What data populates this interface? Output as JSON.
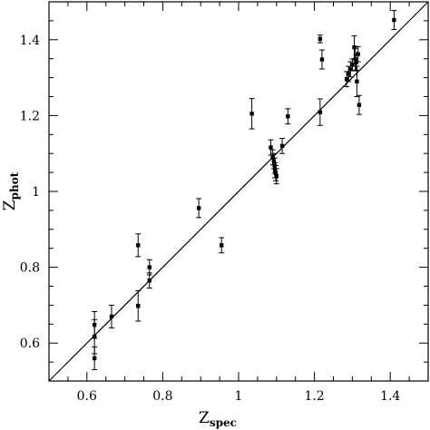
{
  "chart_data": {
    "type": "scatter",
    "xlabel": {
      "main": "Z",
      "sub": "spec"
    },
    "ylabel": {
      "main": "Z",
      "sub": "phot"
    },
    "xlim": [
      0.5,
      1.5
    ],
    "ylim": [
      0.5,
      1.5
    ],
    "x_ticks": [
      0.6,
      0.8,
      1,
      1.2,
      1.4
    ],
    "x_tick_labels": [
      "0.6",
      "0.8",
      "1",
      "1.2",
      "1.4"
    ],
    "y_ticks": [
      0.6,
      0.8,
      1,
      1.2,
      1.4
    ],
    "y_tick_labels": [
      "0.6",
      "0.8",
      "1",
      "1.2",
      "1.4"
    ],
    "reference_line": {
      "from": [
        0.5,
        0.5
      ],
      "to": [
        1.5,
        1.5
      ]
    },
    "grid": false,
    "points": [
      {
        "x": 0.62,
        "y": 0.648,
        "err": 0.035
      },
      {
        "x": 0.62,
        "y": 0.617,
        "err": 0.045
      },
      {
        "x": 0.62,
        "y": 0.56,
        "err": 0.03
      },
      {
        "x": 0.665,
        "y": 0.67,
        "err": 0.03
      },
      {
        "x": 0.735,
        "y": 0.858,
        "err": 0.03
      },
      {
        "x": 0.735,
        "y": 0.698,
        "err": 0.04
      },
      {
        "x": 0.765,
        "y": 0.8,
        "err": 0.02
      },
      {
        "x": 0.765,
        "y": 0.765,
        "err": 0.02
      },
      {
        "x": 0.895,
        "y": 0.956,
        "err": 0.025
      },
      {
        "x": 0.955,
        "y": 0.858,
        "err": 0.02
      },
      {
        "x": 1.035,
        "y": 1.205,
        "err": 0.04
      },
      {
        "x": 1.085,
        "y": 1.116,
        "err": 0.02
      },
      {
        "x": 1.09,
        "y": 1.09,
        "err": 0.02
      },
      {
        "x": 1.093,
        "y": 1.08,
        "err": 0.02
      },
      {
        "x": 1.095,
        "y": 1.068,
        "err": 0.02
      },
      {
        "x": 1.096,
        "y": 1.056,
        "err": 0.02
      },
      {
        "x": 1.098,
        "y": 1.048,
        "err": 0.02
      },
      {
        "x": 1.1,
        "y": 1.04,
        "err": 0.02
      },
      {
        "x": 1.115,
        "y": 1.12,
        "err": 0.02
      },
      {
        "x": 1.13,
        "y": 1.198,
        "err": 0.02
      },
      {
        "x": 1.215,
        "y": 1.209,
        "err": 0.035
      },
      {
        "x": 1.215,
        "y": 1.402,
        "err": 0.01
      },
      {
        "x": 1.22,
        "y": 1.348,
        "err": 0.025
      },
      {
        "x": 1.285,
        "y": 1.296,
        "err": 0.02
      },
      {
        "x": 1.29,
        "y": 1.31,
        "err": 0.02
      },
      {
        "x": 1.295,
        "y": 1.322,
        "err": 0.02
      },
      {
        "x": 1.3,
        "y": 1.334,
        "err": 0.015
      },
      {
        "x": 1.305,
        "y": 1.38,
        "err": 0.03
      },
      {
        "x": 1.308,
        "y": 1.348,
        "err": 0.03
      },
      {
        "x": 1.31,
        "y": 1.34,
        "err": 0.02
      },
      {
        "x": 1.312,
        "y": 1.29,
        "err": 0.04
      },
      {
        "x": 1.315,
        "y": 1.362,
        "err": 0.02
      },
      {
        "x": 1.318,
        "y": 1.228,
        "err": 0.025
      },
      {
        "x": 1.41,
        "y": 1.452,
        "err": 0.025
      }
    ]
  }
}
